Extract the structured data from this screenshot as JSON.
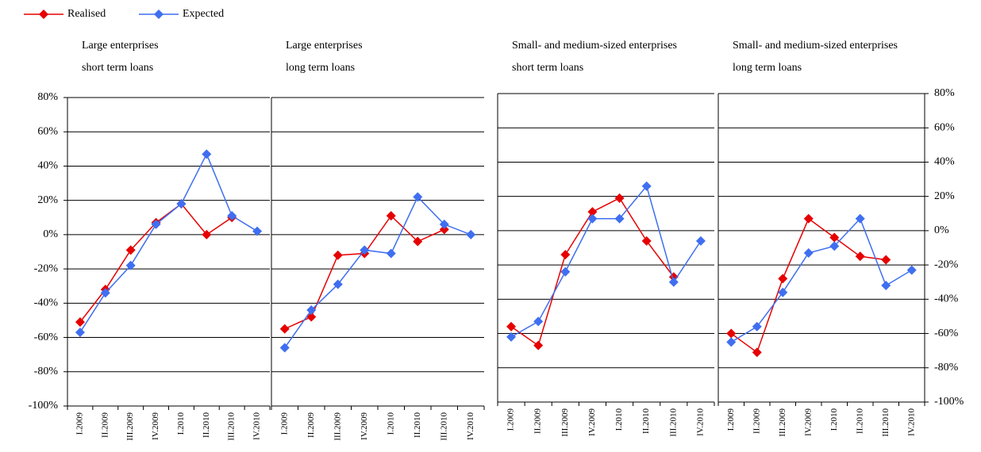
{
  "chart_data": [
    {
      "type": "line",
      "title": [
        "Large enterprises",
        "short term loans"
      ],
      "categories": [
        "I.2009",
        "II.2009",
        "III.2009",
        "IV.2009",
        "I.2010",
        "II.2010",
        "III.2010",
        "IV.2010"
      ],
      "series": [
        {
          "name": "Realised",
          "color": "#e60000",
          "values": [
            -51,
            -32,
            -9,
            7,
            18,
            0,
            10,
            null
          ]
        },
        {
          "name": "Expected",
          "color": "#3f6ff0",
          "values": [
            -57,
            -34,
            -18,
            6,
            18,
            47,
            11,
            2
          ]
        }
      ],
      "ylim": [
        -100,
        80
      ],
      "yticks": [
        {
          "value": -100,
          "label": "-100%"
        },
        {
          "value": -80,
          "label": "-80%"
        },
        {
          "value": -60,
          "label": "-60%"
        },
        {
          "value": -40,
          "label": "-40%"
        },
        {
          "value": -20,
          "label": "-20%"
        },
        {
          "value": 0,
          "label": "0%"
        },
        {
          "value": 20,
          "label": "20%"
        },
        {
          "value": 40,
          "label": "40%"
        },
        {
          "value": 60,
          "label": "60%"
        },
        {
          "value": 80,
          "label": "80%"
        }
      ],
      "ytick_side": "left",
      "grid": true
    },
    {
      "type": "line",
      "title": [
        "Large enterprises",
        "long term loans"
      ],
      "categories": [
        "I.2009",
        "II.2009",
        "III.2009",
        "IV.2009",
        "I.2010",
        "II.2010",
        "III.2010",
        "IV.2010"
      ],
      "series": [
        {
          "name": "Realised",
          "color": "#e60000",
          "values": [
            -55,
            -48,
            -12,
            -11,
            11,
            -4,
            3,
            null
          ]
        },
        {
          "name": "Expected",
          "color": "#3f6ff0",
          "values": [
            -66,
            -44,
            -29,
            -9,
            -11,
            22,
            6,
            0
          ]
        }
      ],
      "ylim": [
        -100,
        80
      ],
      "grid": true
    },
    {
      "type": "line",
      "title": [
        "Small- and medium-sized enterprises",
        "short term loans"
      ],
      "categories": [
        "I.2009",
        "II.2009",
        "III.2009",
        "IV.2009",
        "I.2010",
        "II.2010",
        "III.2010",
        "IV.2010"
      ],
      "series": [
        {
          "name": "Realised",
          "color": "#e60000",
          "values": [
            -56,
            -67,
            -14,
            11,
            19,
            -6,
            -27,
            null
          ]
        },
        {
          "name": "Expected",
          "color": "#3f6ff0",
          "values": [
            -62,
            -53,
            -24,
            7,
            7,
            26,
            -30,
            -6
          ]
        }
      ],
      "ylim": [
        -100,
        80
      ],
      "grid": true
    },
    {
      "type": "line",
      "title": [
        "Small- and medium-sized enterprises",
        "long term loans"
      ],
      "categories": [
        "I.2009",
        "II.2009",
        "III.2009",
        "IV.2009",
        "I.2010",
        "II.2010",
        "III.2010",
        "IV.2010"
      ],
      "series": [
        {
          "name": "Realised",
          "color": "#e60000",
          "values": [
            -60,
            -71,
            -28,
            7,
            -4,
            -15,
            -17,
            null
          ]
        },
        {
          "name": "Expected",
          "color": "#3f6ff0",
          "values": [
            -65,
            -56,
            -36,
            -13,
            -9,
            7,
            -32,
            -23
          ]
        }
      ],
      "ylim": [
        -100,
        80
      ],
      "yticks": [
        {
          "value": -100,
          "label": "-100%"
        },
        {
          "value": -80,
          "label": "-80%"
        },
        {
          "value": -60,
          "label": "-60%"
        },
        {
          "value": -40,
          "label": "-40%"
        },
        {
          "value": -20,
          "label": "-20%"
        },
        {
          "value": 0,
          "label": "0%"
        },
        {
          "value": 20,
          "label": "20%"
        },
        {
          "value": 40,
          "label": "40%"
        },
        {
          "value": 60,
          "label": "60%"
        },
        {
          "value": 80,
          "label": "80%"
        }
      ],
      "ytick_side": "right",
      "grid": true
    }
  ]
}
